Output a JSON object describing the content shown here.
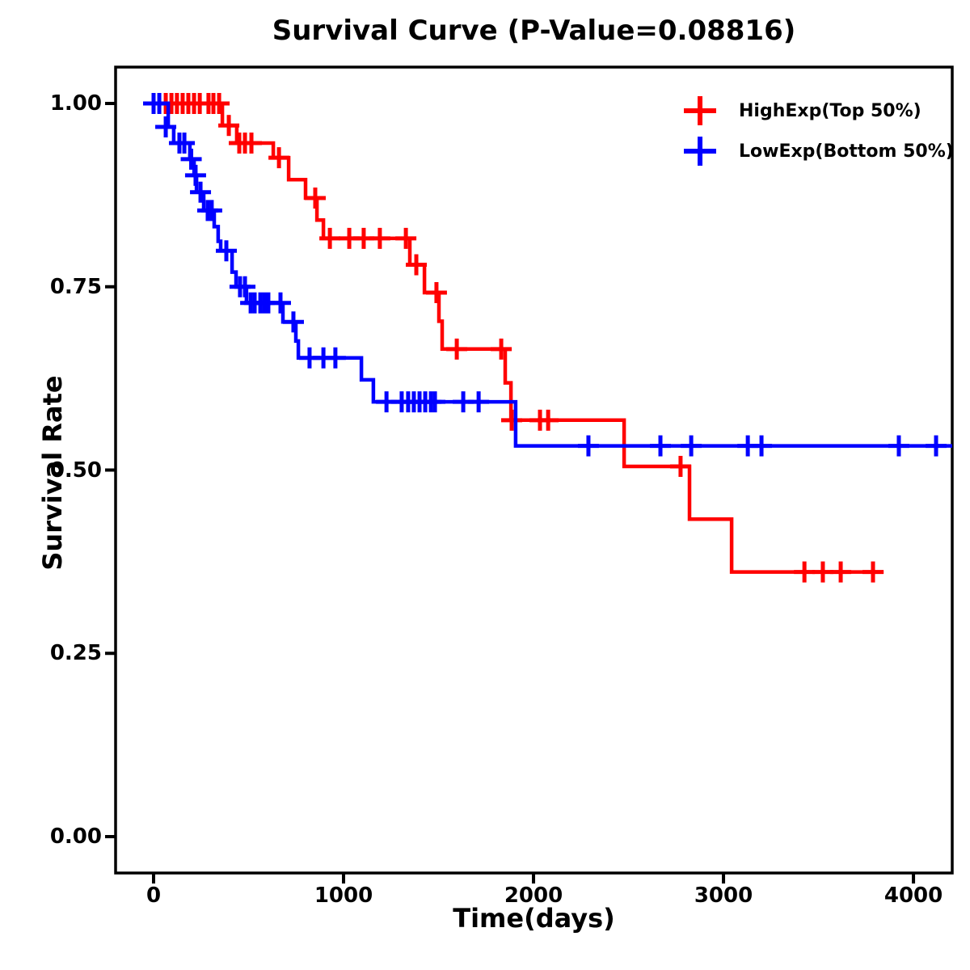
{
  "chart_data": {
    "type": "line",
    "subtype": "kaplan-meier-step",
    "title": "Survival Curve (P-Value=0.08816)",
    "xlabel": "Time(days)",
    "ylabel": "Survival Rate",
    "xlim": [
      -200,
      4204
    ],
    "ylim": [
      -0.0496,
      1.0496
    ],
    "grid": false,
    "legend_position": "top-right-inside",
    "axis_color": "#000000",
    "x_ticks": [
      {
        "label": "0",
        "value": 0
      },
      {
        "label": "1000",
        "value": 1000
      },
      {
        "label": "2000",
        "value": 2000
      },
      {
        "label": "3000",
        "value": 3000
      },
      {
        "label": "4000",
        "value": 4000
      }
    ],
    "y_ticks": [
      {
        "label": "0.00",
        "value": 0.0
      },
      {
        "label": "0.25",
        "value": 0.25
      },
      {
        "label": "0.50",
        "value": 0.5
      },
      {
        "label": "0.75",
        "value": 0.75
      },
      {
        "label": "1.00",
        "value": 1.0
      }
    ],
    "series": [
      {
        "name": "HighExp(Top 50%)",
        "color": "#ff0000",
        "end_day": 3843,
        "points": [
          [
            0,
            1.0
          ],
          [
            362,
            0.97
          ],
          [
            438,
            0.946
          ],
          [
            630,
            0.926
          ],
          [
            711,
            0.896
          ],
          [
            800,
            0.871
          ],
          [
            860,
            0.841
          ],
          [
            894,
            0.816
          ],
          [
            1349,
            0.78
          ],
          [
            1426,
            0.742
          ],
          [
            1502,
            0.703
          ],
          [
            1519,
            0.665
          ],
          [
            1851,
            0.619
          ],
          [
            1881,
            0.568
          ],
          [
            2477,
            0.505
          ],
          [
            2821,
            0.433
          ],
          [
            3043,
            0.361
          ]
        ],
        "censors": [
          [
            64,
            1.0
          ],
          [
            94,
            1.0
          ],
          [
            123,
            1.0
          ],
          [
            153,
            1.0
          ],
          [
            183,
            1.0
          ],
          [
            213,
            1.0
          ],
          [
            243,
            1.0
          ],
          [
            289,
            1.0
          ],
          [
            315,
            1.0
          ],
          [
            345,
            1.0
          ],
          [
            396,
            0.97
          ],
          [
            451,
            0.946
          ],
          [
            481,
            0.946
          ],
          [
            515,
            0.946
          ],
          [
            660,
            0.926
          ],
          [
            851,
            0.871
          ],
          [
            928,
            0.816
          ],
          [
            1030,
            0.816
          ],
          [
            1106,
            0.816
          ],
          [
            1191,
            0.816
          ],
          [
            1328,
            0.816
          ],
          [
            1383,
            0.78
          ],
          [
            1489,
            0.742
          ],
          [
            1596,
            0.665
          ],
          [
            1830,
            0.665
          ],
          [
            1885,
            0.568
          ],
          [
            2034,
            0.568
          ],
          [
            2077,
            0.568
          ],
          [
            2774,
            0.505
          ],
          [
            3426,
            0.361
          ],
          [
            3523,
            0.361
          ],
          [
            3617,
            0.361
          ],
          [
            3787,
            0.361
          ]
        ]
      },
      {
        "name": "LowExp(Bottom 50%)",
        "color": "#0000ff",
        "end_day": 4204,
        "points": [
          [
            0,
            1.0
          ],
          [
            77,
            0.968
          ],
          [
            106,
            0.946
          ],
          [
            191,
            0.924
          ],
          [
            213,
            0.902
          ],
          [
            226,
            0.879
          ],
          [
            264,
            0.854
          ],
          [
            319,
            0.832
          ],
          [
            340,
            0.812
          ],
          [
            353,
            0.799
          ],
          [
            413,
            0.77
          ],
          [
            434,
            0.75
          ],
          [
            489,
            0.728
          ],
          [
            681,
            0.702
          ],
          [
            749,
            0.676
          ],
          [
            762,
            0.653
          ],
          [
            1094,
            0.623
          ],
          [
            1157,
            0.593
          ],
          [
            1906,
            0.533
          ]
        ],
        "censors": [
          [
            0,
            1.0
          ],
          [
            30,
            1.0
          ],
          [
            64,
            0.968
          ],
          [
            136,
            0.946
          ],
          [
            162,
            0.946
          ],
          [
            198,
            0.924
          ],
          [
            221,
            0.902
          ],
          [
            247,
            0.879
          ],
          [
            285,
            0.854
          ],
          [
            306,
            0.854
          ],
          [
            383,
            0.799
          ],
          [
            455,
            0.75
          ],
          [
            481,
            0.75
          ],
          [
            511,
            0.728
          ],
          [
            532,
            0.728
          ],
          [
            562,
            0.728
          ],
          [
            583,
            0.728
          ],
          [
            604,
            0.728
          ],
          [
            668,
            0.728
          ],
          [
            736,
            0.702
          ],
          [
            821,
            0.653
          ],
          [
            894,
            0.653
          ],
          [
            957,
            0.653
          ],
          [
            1226,
            0.593
          ],
          [
            1306,
            0.593
          ],
          [
            1340,
            0.593
          ],
          [
            1370,
            0.593
          ],
          [
            1400,
            0.593
          ],
          [
            1430,
            0.593
          ],
          [
            1460,
            0.593
          ],
          [
            1481,
            0.593
          ],
          [
            1630,
            0.593
          ],
          [
            1711,
            0.593
          ],
          [
            2289,
            0.533
          ],
          [
            2668,
            0.533
          ],
          [
            2830,
            0.533
          ],
          [
            3128,
            0.533
          ],
          [
            3200,
            0.533
          ],
          [
            3923,
            0.533
          ],
          [
            4119,
            0.533
          ]
        ]
      }
    ]
  }
}
